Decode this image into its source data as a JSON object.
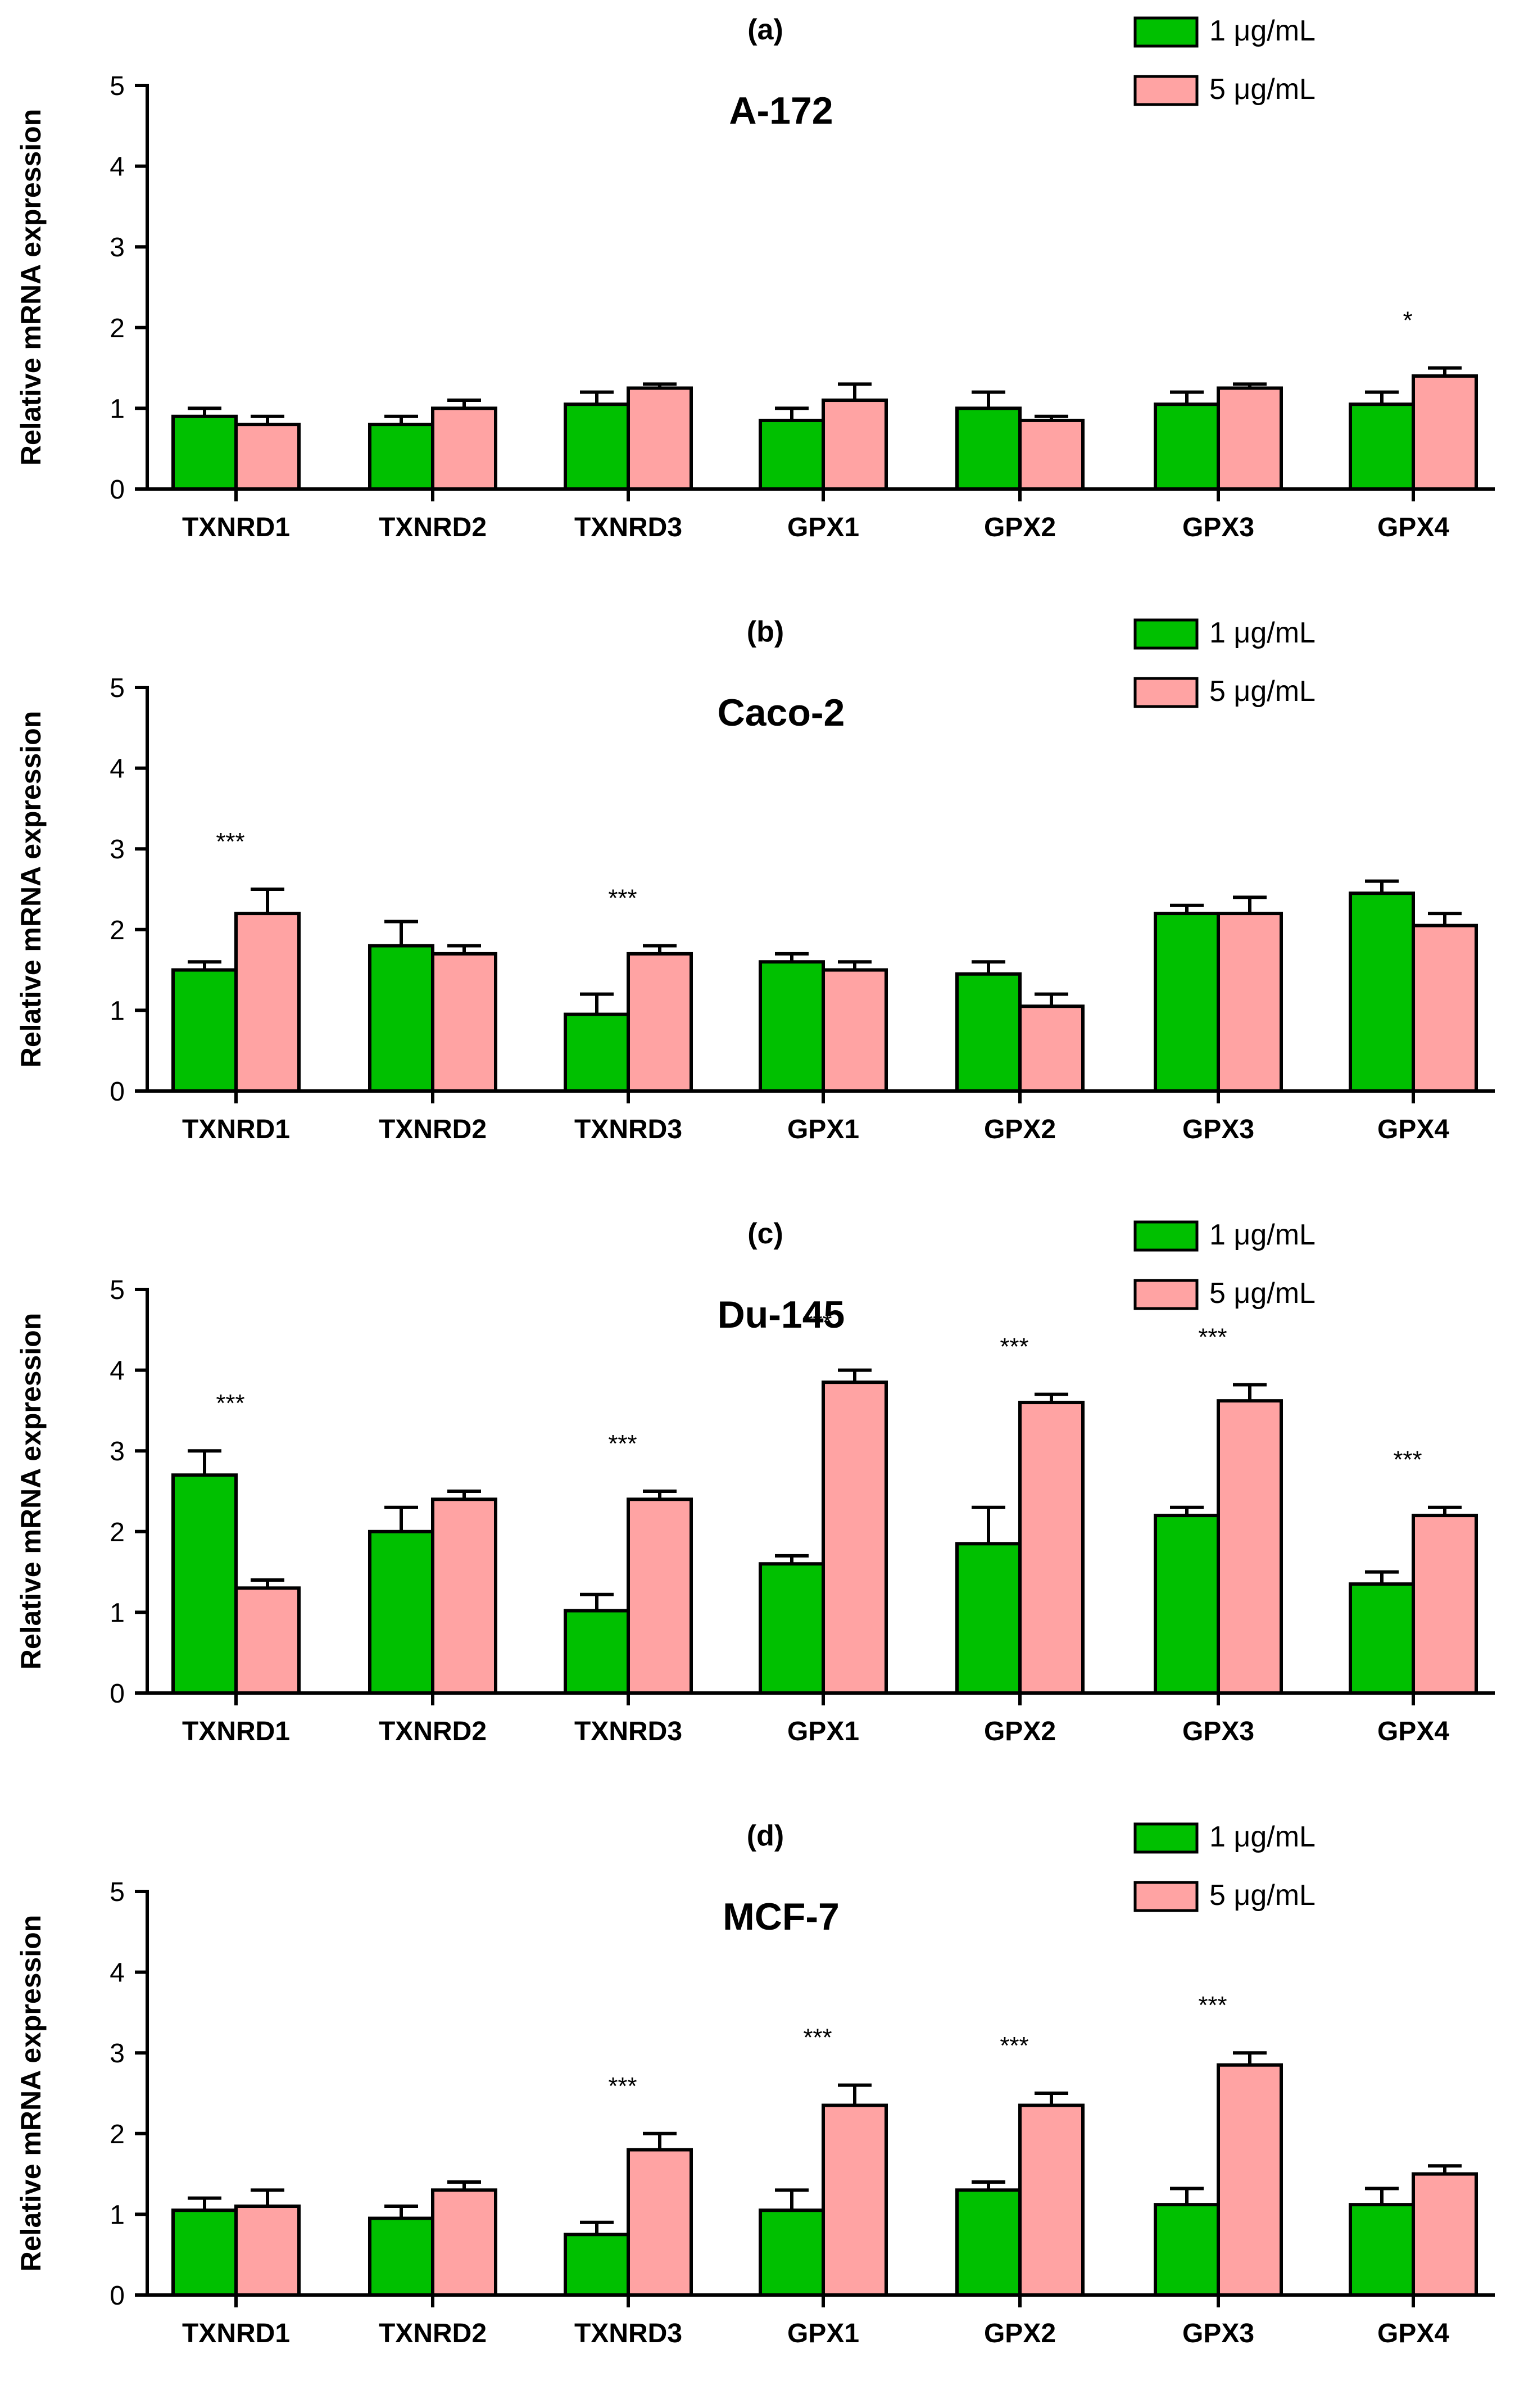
{
  "colors": {
    "series1": "#00c000",
    "series2": "#ffa3a3",
    "axis": "#000000"
  },
  "chart_data": [
    {
      "type": "bar",
      "panel_label": "(a)",
      "title": "A-172",
      "ylabel": "Relative mRNA expression",
      "ylim": [
        0,
        5
      ],
      "yticks": [
        "0",
        "1",
        "2",
        "3",
        "4",
        "5"
      ],
      "categories": [
        "TXNRD1",
        "TXNRD2",
        "TXNRD3",
        "GPX1",
        "GPX2",
        "GPX3",
        "GPX4"
      ],
      "series": [
        {
          "name": "1 μg/mL",
          "values": [
            0.9,
            0.8,
            1.05,
            0.85,
            1.0,
            1.05,
            1.05
          ],
          "errors": [
            0.1,
            0.1,
            0.15,
            0.15,
            0.2,
            0.15,
            0.15
          ]
        },
        {
          "name": "5 μg/mL",
          "values": [
            0.8,
            1.0,
            1.25,
            1.1,
            0.85,
            1.25,
            1.4
          ],
          "errors": [
            0.1,
            0.1,
            0.05,
            0.2,
            0.05,
            0.05,
            0.1
          ]
        }
      ],
      "significance": [
        "",
        "",
        "",
        "",
        "",
        "",
        "*"
      ],
      "legend": "top-right",
      "grid": false
    },
    {
      "type": "bar",
      "panel_label": "(b)",
      "title": "Caco-2",
      "ylabel": "Relative mRNA expression",
      "ylim": [
        0,
        5
      ],
      "yticks": [
        "0",
        "1",
        "2",
        "3",
        "4",
        "5"
      ],
      "categories": [
        "TXNRD1",
        "TXNRD2",
        "TXNRD3",
        "GPX1",
        "GPX2",
        "GPX3",
        "GPX4"
      ],
      "series": [
        {
          "name": "1 μg/mL",
          "values": [
            1.5,
            1.8,
            0.95,
            1.6,
            1.45,
            2.2,
            2.45
          ],
          "errors": [
            0.1,
            0.3,
            0.25,
            0.1,
            0.15,
            0.1,
            0.15
          ]
        },
        {
          "name": "5 μg/mL",
          "values": [
            2.2,
            1.7,
            1.7,
            1.5,
            1.05,
            2.2,
            2.05
          ],
          "errors": [
            0.3,
            0.1,
            0.1,
            0.1,
            0.15,
            0.2,
            0.15
          ]
        }
      ],
      "significance": [
        "***",
        "",
        "***",
        "",
        "",
        "",
        ""
      ],
      "legend": "top-right",
      "grid": false
    },
    {
      "type": "bar",
      "panel_label": "(c)",
      "title": "Du-145",
      "ylabel": "Relative mRNA expression",
      "ylim": [
        0,
        5
      ],
      "yticks": [
        "0",
        "1",
        "2",
        "3",
        "4",
        "5"
      ],
      "categories": [
        "TXNRD1",
        "TXNRD2",
        "TXNRD3",
        "GPX1",
        "GPX2",
        "GPX3",
        "GPX4"
      ],
      "series": [
        {
          "name": "1 μg/mL",
          "values": [
            2.7,
            2.0,
            1.02,
            1.6,
            1.85,
            2.2,
            1.35
          ],
          "errors": [
            0.3,
            0.3,
            0.2,
            0.1,
            0.45,
            0.1,
            0.15
          ]
        },
        {
          "name": "5 μg/mL",
          "values": [
            1.3,
            2.4,
            2.4,
            3.85,
            3.6,
            3.62,
            2.2
          ],
          "errors": [
            0.1,
            0.1,
            0.1,
            0.15,
            0.1,
            0.2,
            0.1
          ]
        }
      ],
      "significance": [
        "***",
        "",
        "***",
        "***",
        "***",
        "***",
        "***"
      ],
      "legend": "top-right",
      "grid": false
    },
    {
      "type": "bar",
      "panel_label": "(d)",
      "title": "MCF-7",
      "ylabel": "Relative mRNA expression",
      "ylim": [
        0,
        5
      ],
      "yticks": [
        "0",
        "1",
        "2",
        "3",
        "4",
        "5"
      ],
      "categories": [
        "TXNRD1",
        "TXNRD2",
        "TXNRD3",
        "GPX1",
        "GPX2",
        "GPX3",
        "GPX4"
      ],
      "series": [
        {
          "name": "1 μg/mL",
          "values": [
            1.05,
            0.95,
            0.75,
            1.05,
            1.3,
            1.12,
            1.12
          ],
          "errors": [
            0.15,
            0.15,
            0.15,
            0.25,
            0.1,
            0.2,
            0.2
          ]
        },
        {
          "name": "5 μg/mL",
          "values": [
            1.1,
            1.3,
            1.8,
            2.35,
            2.35,
            2.85,
            1.5
          ],
          "errors": [
            0.2,
            0.1,
            0.2,
            0.25,
            0.15,
            0.15,
            0.1
          ]
        }
      ],
      "significance": [
        "",
        "",
        "***",
        "***",
        "***",
        "***",
        ""
      ],
      "legend": "top-right",
      "grid": false
    }
  ]
}
